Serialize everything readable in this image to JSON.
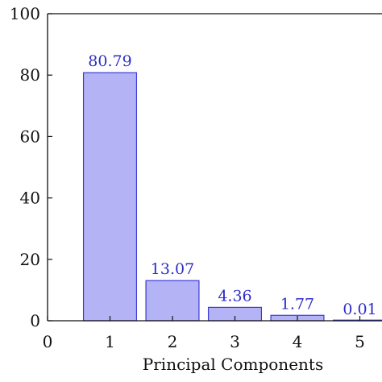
{
  "chart_data": {
    "type": "bar",
    "title": "",
    "xlabel": "Principal Components",
    "ylabel": "",
    "x": [
      1,
      2,
      3,
      4,
      5
    ],
    "values": [
      80.79,
      13.07,
      4.36,
      1.77,
      0.01
    ],
    "data_labels": [
      "80.79",
      "13.07",
      "4.36",
      "1.77",
      "0.01"
    ],
    "xlim": [
      0,
      5
    ],
    "ylim": [
      0,
      100
    ],
    "xticks": [
      0,
      1,
      2,
      3,
      4,
      5
    ],
    "xtick_labels": [
      "0",
      "1",
      "2",
      "3",
      "4",
      "5"
    ],
    "yticks": [
      0,
      20,
      40,
      60,
      80,
      100
    ],
    "ytick_labels": [
      "0",
      "20",
      "40",
      "60",
      "80",
      "100"
    ],
    "bar_width_units": 0.85,
    "grid": false,
    "legend": "none",
    "colors": {
      "bar_fill": "#b3b3f5",
      "bar_stroke": "#3b3bd9",
      "data_label": "#2d2dc8",
      "axis": "#111111"
    }
  }
}
